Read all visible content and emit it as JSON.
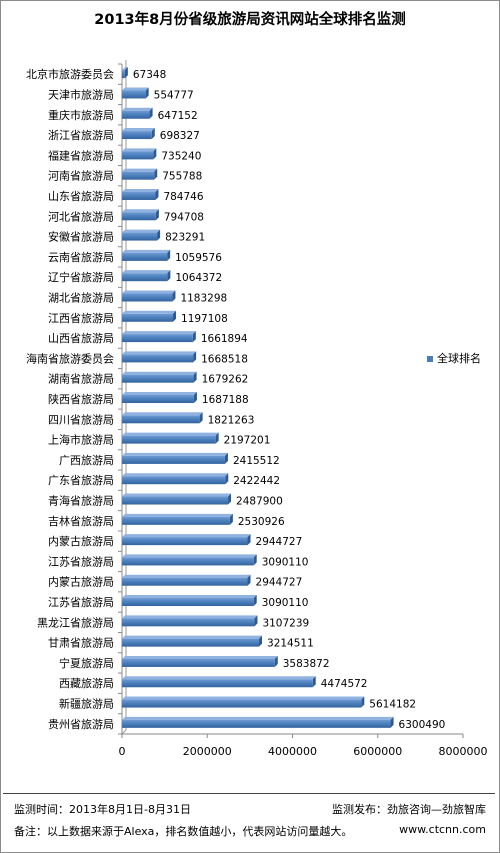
{
  "title": "2013年8月份省级旅游局资讯网站全球排名监测",
  "chart_data": {
    "type": "bar",
    "orientation": "horizontal",
    "categories": [
      "北京市旅游委员会",
      "天津市旅游局",
      "重庆市旅游局",
      "浙江省旅游局",
      "福建省旅游局",
      "河南省旅游局",
      "山东省旅游局",
      "河北省旅游局",
      "安徽省旅游局",
      "云南省旅游局",
      "辽宁省旅游局",
      "湖北省旅游局",
      "江西省旅游局",
      "山西省旅游局",
      "海南省旅游委员会",
      "湖南省旅游局",
      "陕西省旅游局",
      "四川省旅游局",
      "上海市旅游局",
      "广西旅游局",
      "广东省旅游局",
      "青海省旅游局",
      "吉林省旅游局",
      "内蒙古旅游局",
      "江苏省旅游局",
      "内蒙古旅游局",
      "江苏省旅游局",
      "黑龙江省旅游局",
      "甘肃省旅游局",
      "宁夏旅游局",
      "西藏旅游局",
      "新疆旅游局",
      "贵州省旅游局"
    ],
    "series": [
      {
        "name": "全球排名",
        "values": [
          67348,
          554777,
          647152,
          698327,
          735240,
          755788,
          784746,
          794708,
          823291,
          1059576,
          1064372,
          1183298,
          1197108,
          1661894,
          1668518,
          1679262,
          1687188,
          1821263,
          2197201,
          2415512,
          2422442,
          2487900,
          2530926,
          2944727,
          3090110,
          2944727,
          3090110,
          3107239,
          3214511,
          3583872,
          4474572,
          5614182,
          6300490
        ]
      }
    ],
    "x_ticks": [
      "0",
      "2000000",
      "4000000",
      "6000000",
      "8000000"
    ],
    "xlim": [
      0,
      8000000
    ],
    "legend": "right",
    "grid": false,
    "bar_color": "#4a7ebb"
  },
  "footer": {
    "time": "监测时间：2013年8月1日-8月31日",
    "publisher": "监测发布：劲旅咨询—劲旅智库",
    "note": "备注：以上数据来源于Alexa，排名数值越小，代表网站访问量越大。",
    "site": "www.ctcnn.com"
  }
}
